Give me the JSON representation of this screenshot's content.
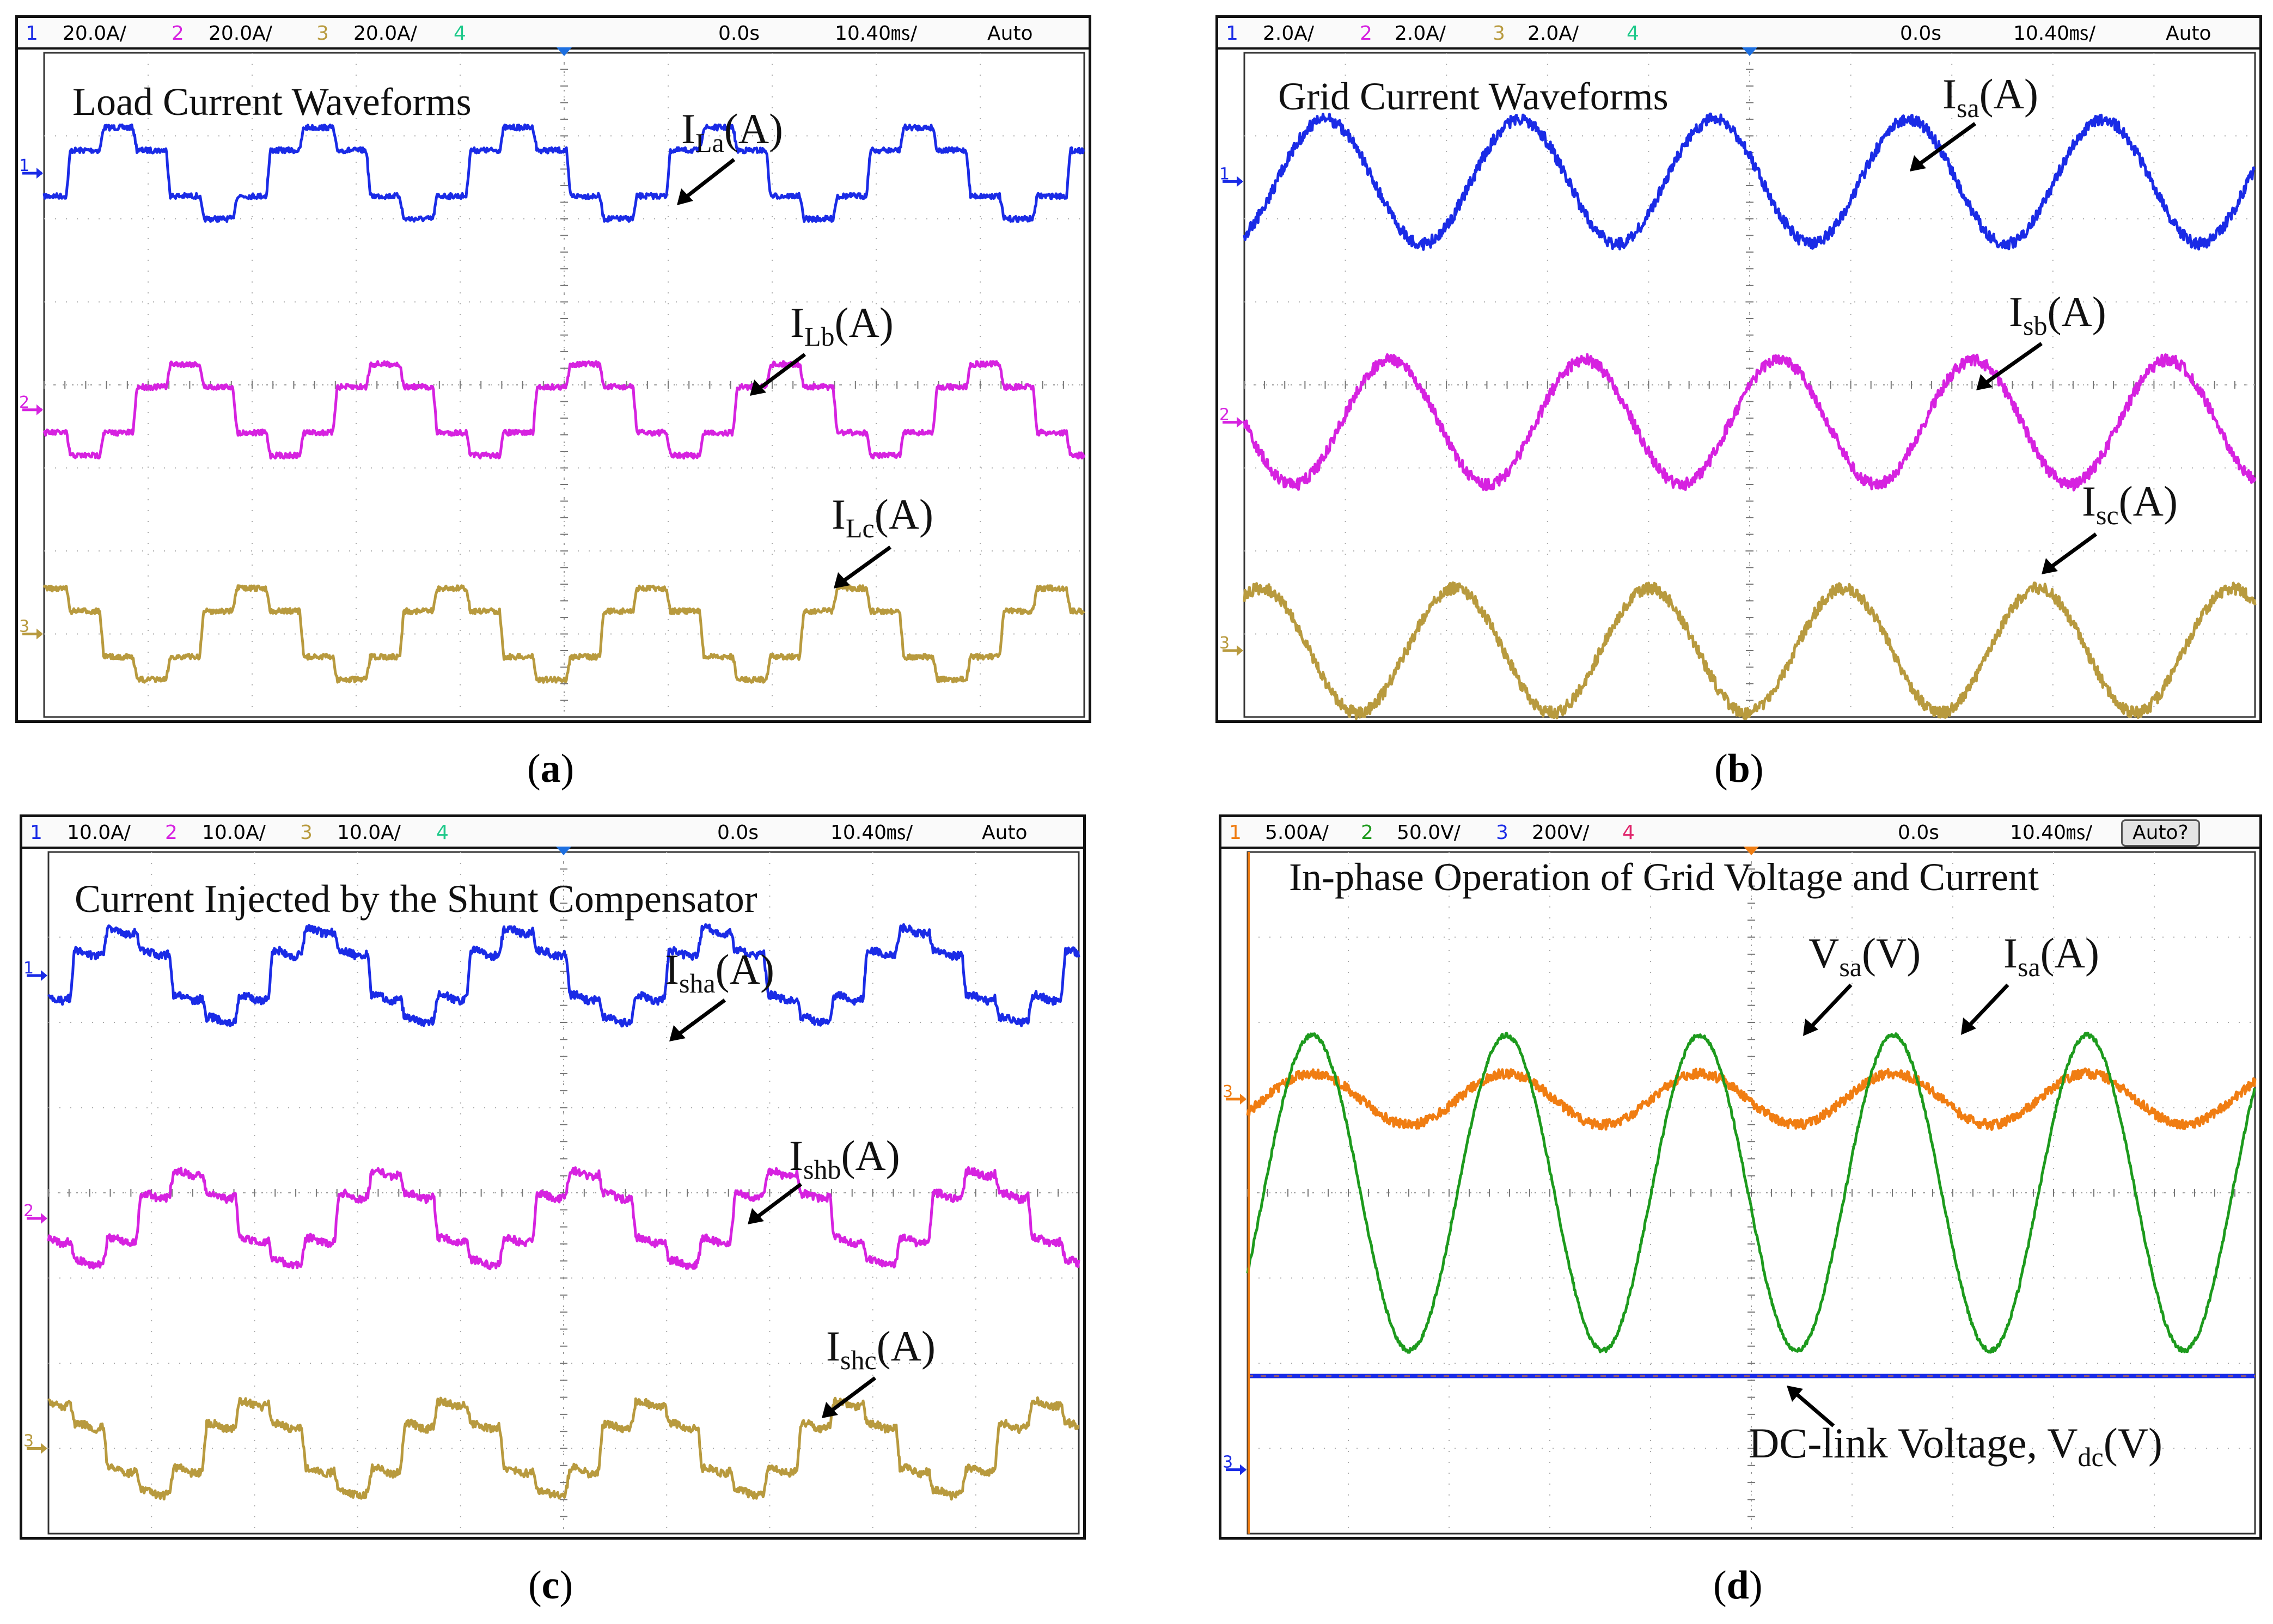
{
  "colors": {
    "ch_blue": "#1a2be6",
    "ch_magenta": "#d622e0",
    "ch_gold": "#b89a3e",
    "ch_green": "#1d9a1d",
    "ch_orange": "#f07d12",
    "ch4_cyan": "#1ec98a",
    "ch_red": "#e0256b",
    "marker": "#1d6fe0",
    "marker_orange": "#f07d12"
  },
  "panels": [
    {
      "id": "a",
      "label": "a",
      "title": "Load Current Waveforms",
      "header": {
        "ch1": "1",
        "v1": "20.0A/",
        "ch2": "2",
        "v2": "20.0A/",
        "ch3": "3",
        "v3": "20.0A/",
        "ch4": "4",
        "time": "0.0s",
        "timebase": "10.40㎳/",
        "mode": "Auto"
      },
      "signals": [
        {
          "main": "I",
          "sub": "La",
          "unit": "(A)"
        },
        {
          "main": "I",
          "sub": "Lb",
          "unit": "(A)"
        },
        {
          "main": "I",
          "sub": "Lc",
          "unit": "(A)"
        }
      ]
    },
    {
      "id": "b",
      "label": "b",
      "title": "Grid Current Waveforms",
      "header": {
        "ch1": "1",
        "v1": "2.0A/",
        "ch2": "2",
        "v2": "2.0A/",
        "ch3": "3",
        "v3": "2.0A/",
        "ch4": "4",
        "time": "0.0s",
        "timebase": "10.40㎳/",
        "mode": "Auto"
      },
      "signals": [
        {
          "main": "I",
          "sub": "sa",
          "unit": "(A)"
        },
        {
          "main": "I",
          "sub": "sb",
          "unit": "(A)"
        },
        {
          "main": "I",
          "sub": "sc",
          "unit": "(A)"
        }
      ]
    },
    {
      "id": "c",
      "label": "c",
      "title": "Current Injected by the Shunt Compensator",
      "header": {
        "ch1": "1",
        "v1": "10.0A/",
        "ch2": "2",
        "v2": "10.0A/",
        "ch3": "3",
        "v3": "10.0A/",
        "ch4": "4",
        "time": "0.0s",
        "timebase": "10.40㎳/",
        "mode": "Auto"
      },
      "signals": [
        {
          "main": "I",
          "sub": "sha",
          "unit": "(A)"
        },
        {
          "main": "I",
          "sub": "shb",
          "unit": "(A)"
        },
        {
          "main": "I",
          "sub": "shc",
          "unit": "(A)"
        }
      ]
    },
    {
      "id": "d",
      "label": "d",
      "title": "In-phase Operation of Grid Voltage and Current",
      "header": {
        "ch1": "1",
        "v1": "5.00A/",
        "ch2": "2",
        "v2": "50.0V/",
        "ch3": "3",
        "v3": "200V/",
        "ch4": "4",
        "time": "0.0s",
        "timebase": "10.40㎳/",
        "mode": "Auto?"
      },
      "signals": [
        {
          "main": "V",
          "sub": "sa",
          "unit": "(V)"
        },
        {
          "main": "I",
          "sub": "sa",
          "unit": "(A)"
        },
        {
          "main": "DC-link Voltage, V",
          "sub": "dc",
          "unit": "(V)"
        }
      ]
    }
  ],
  "chart_data": [
    {
      "type": "line",
      "panel": "a",
      "timebase_ms_per_div": 10.4,
      "divisions": 10,
      "cycles_shown": 5.2,
      "series": [
        {
          "name": "ILa(A)",
          "waveform": "six-step quasi-square",
          "scale_A_per_div": 20.0,
          "amplitude_div": 0.55
        },
        {
          "name": "ILb(A)",
          "waveform": "six-step quasi-square",
          "scale_A_per_div": 20.0,
          "amplitude_div": 0.55,
          "phase_deg": -120
        },
        {
          "name": "ILc(A)",
          "waveform": "six-step quasi-square",
          "scale_A_per_div": 20.0,
          "amplitude_div": 0.55,
          "phase_deg": 120
        }
      ]
    },
    {
      "type": "line",
      "panel": "b",
      "timebase_ms_per_div": 10.4,
      "divisions": 10,
      "cycles_shown": 5.2,
      "series": [
        {
          "name": "Isa(A)",
          "waveform": "sinusoid",
          "scale_A_per_div": 2.0,
          "amplitude_div": 0.75
        },
        {
          "name": "Isb(A)",
          "waveform": "sinusoid",
          "scale_A_per_div": 2.0,
          "amplitude_div": 0.75,
          "phase_deg": -120
        },
        {
          "name": "Isc(A)",
          "waveform": "sinusoid",
          "scale_A_per_div": 2.0,
          "amplitude_div": 0.75,
          "phase_deg": 120
        }
      ]
    },
    {
      "type": "line",
      "panel": "c",
      "timebase_ms_per_div": 10.4,
      "divisions": 10,
      "cycles_shown": 5.2,
      "series": [
        {
          "name": "Isha(A)",
          "waveform": "compensating harmonic",
          "scale_A_per_div": 10.0,
          "amplitude_div": 0.55
        },
        {
          "name": "Ishb(A)",
          "waveform": "compensating harmonic",
          "scale_A_per_div": 10.0,
          "amplitude_div": 0.55,
          "phase_deg": -120
        },
        {
          "name": "Ishc(A)",
          "waveform": "compensating harmonic",
          "scale_A_per_div": 10.0,
          "amplitude_div": 0.55,
          "phase_deg": 120
        }
      ]
    },
    {
      "type": "line",
      "panel": "d",
      "timebase_ms_per_div": 10.4,
      "divisions": 10,
      "cycles_shown": 5.2,
      "series": [
        {
          "name": "Vsa(V)",
          "waveform": "sinusoid",
          "scale_per_div": "50.0V/",
          "amplitude_div": 1.85
        },
        {
          "name": "Isa(A)",
          "waveform": "sinusoid in phase",
          "scale_per_div": "5.00A/",
          "amplitude_div": 0.3
        },
        {
          "name": "DC-link Voltage, Vdc(V)",
          "waveform": "constant",
          "scale_per_div": "200V/"
        }
      ]
    }
  ]
}
